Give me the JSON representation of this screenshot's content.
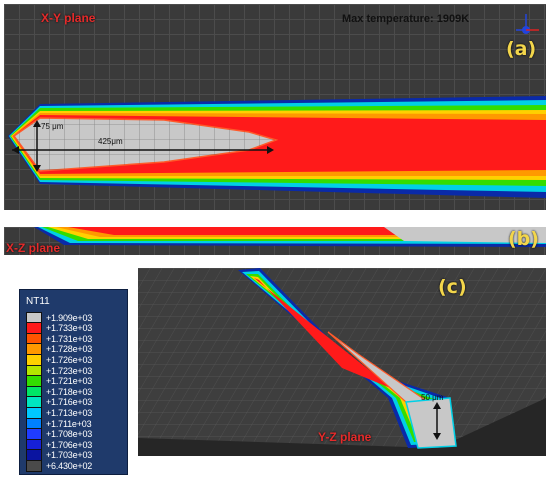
{
  "panel_a": {
    "plane_label": "X-Y plane",
    "badge": "(a)",
    "max_temperature": "Max temperature: 1909K",
    "dim_width": "75 μm",
    "dim_length": "425μm"
  },
  "panel_b": {
    "plane_label": "X-Z plane",
    "badge": "(b)"
  },
  "panel_c": {
    "plane_label": "Y-Z plane",
    "badge": "(c)",
    "dim_depth": "50 μm"
  },
  "legend": {
    "title": "NT11",
    "entries": [
      {
        "color": "#c8c8c8",
        "value": "+1.909e+03"
      },
      {
        "color": "#ff1a1a",
        "value": "+1.733e+03"
      },
      {
        "color": "#ff5500",
        "value": "+1.731e+03"
      },
      {
        "color": "#ff9900",
        "value": "+1.728e+03"
      },
      {
        "color": "#ffd000",
        "value": "+1.726e+03"
      },
      {
        "color": "#b4e600",
        "value": "+1.723e+03"
      },
      {
        "color": "#33dd00",
        "value": "+1.721e+03"
      },
      {
        "color": "#00e666",
        "value": "+1.718e+03"
      },
      {
        "color": "#00e6c0",
        "value": "+1.716e+03"
      },
      {
        "color": "#00c8ff",
        "value": "+1.713e+03"
      },
      {
        "color": "#0080ff",
        "value": "+1.711e+03"
      },
      {
        "color": "#1f3cff",
        "value": "+1.708e+03"
      },
      {
        "color": "#1620d6",
        "value": "+1.706e+03"
      },
      {
        "color": "#0a14a0",
        "value": "+1.703e+03"
      },
      {
        "color": "#4a4a4a",
        "value": "+6.430e+02"
      }
    ]
  },
  "colors": {
    "molten": "#c8c8c8",
    "hot": "#ff1a1a",
    "substrate": "#3a3a3a",
    "label": "#e52b2b",
    "badge": "#f3d64b"
  }
}
